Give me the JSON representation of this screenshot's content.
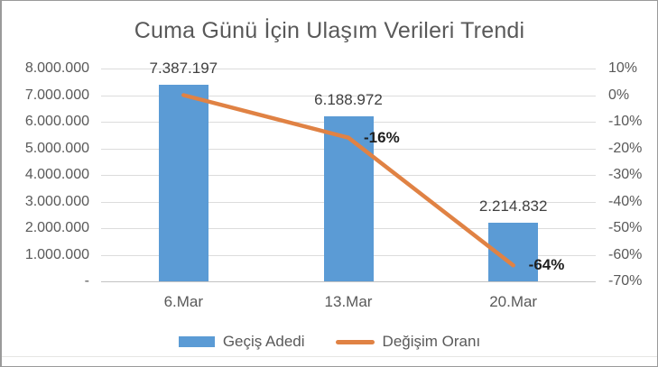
{
  "chart_data": {
    "type": "bar+line",
    "title": "Cuma Günü İçin Ulaşım Verileri Trendi",
    "categories": [
      "6.Mar",
      "13.Mar",
      "20.Mar"
    ],
    "series": [
      {
        "name": "Geçiş Adedi",
        "type": "bar",
        "axis": "left",
        "values": [
          7387197,
          6188972,
          2214832
        ],
        "value_labels": [
          "7.387.197",
          "6.188.972",
          "2.214.832"
        ],
        "color": "#5B9BD5"
      },
      {
        "name": "Değişim Oranı",
        "type": "line",
        "axis": "right",
        "values": [
          0,
          -16,
          -64
        ],
        "value_labels": [
          "",
          "-16%",
          "-64%"
        ],
        "color": "#E08244"
      }
    ],
    "axes": {
      "left": {
        "min": 0,
        "max": 8000000,
        "tick_labels_top_to_bottom": [
          "8.000.000",
          "7.000.000",
          "6.000.000",
          "5.000.000",
          "4.000.000",
          "3.000.000",
          "2.000.000",
          "1.000.000",
          "-"
        ]
      },
      "right": {
        "min": -70,
        "max": 10,
        "tick_labels_top_to_bottom": [
          "10%",
          "0%",
          "-10%",
          "-20%",
          "-30%",
          "-40%",
          "-50%",
          "-60%",
          "-70%"
        ]
      }
    },
    "grid": true,
    "legend_position": "bottom",
    "colors": {
      "gridline": "#DCDCDC",
      "axis_line": "#C3C3C3",
      "tick_text": "#595959",
      "value_label_text": "#404040",
      "line_label_text": "#1F1F1F",
      "title_text": "#595959"
    }
  }
}
